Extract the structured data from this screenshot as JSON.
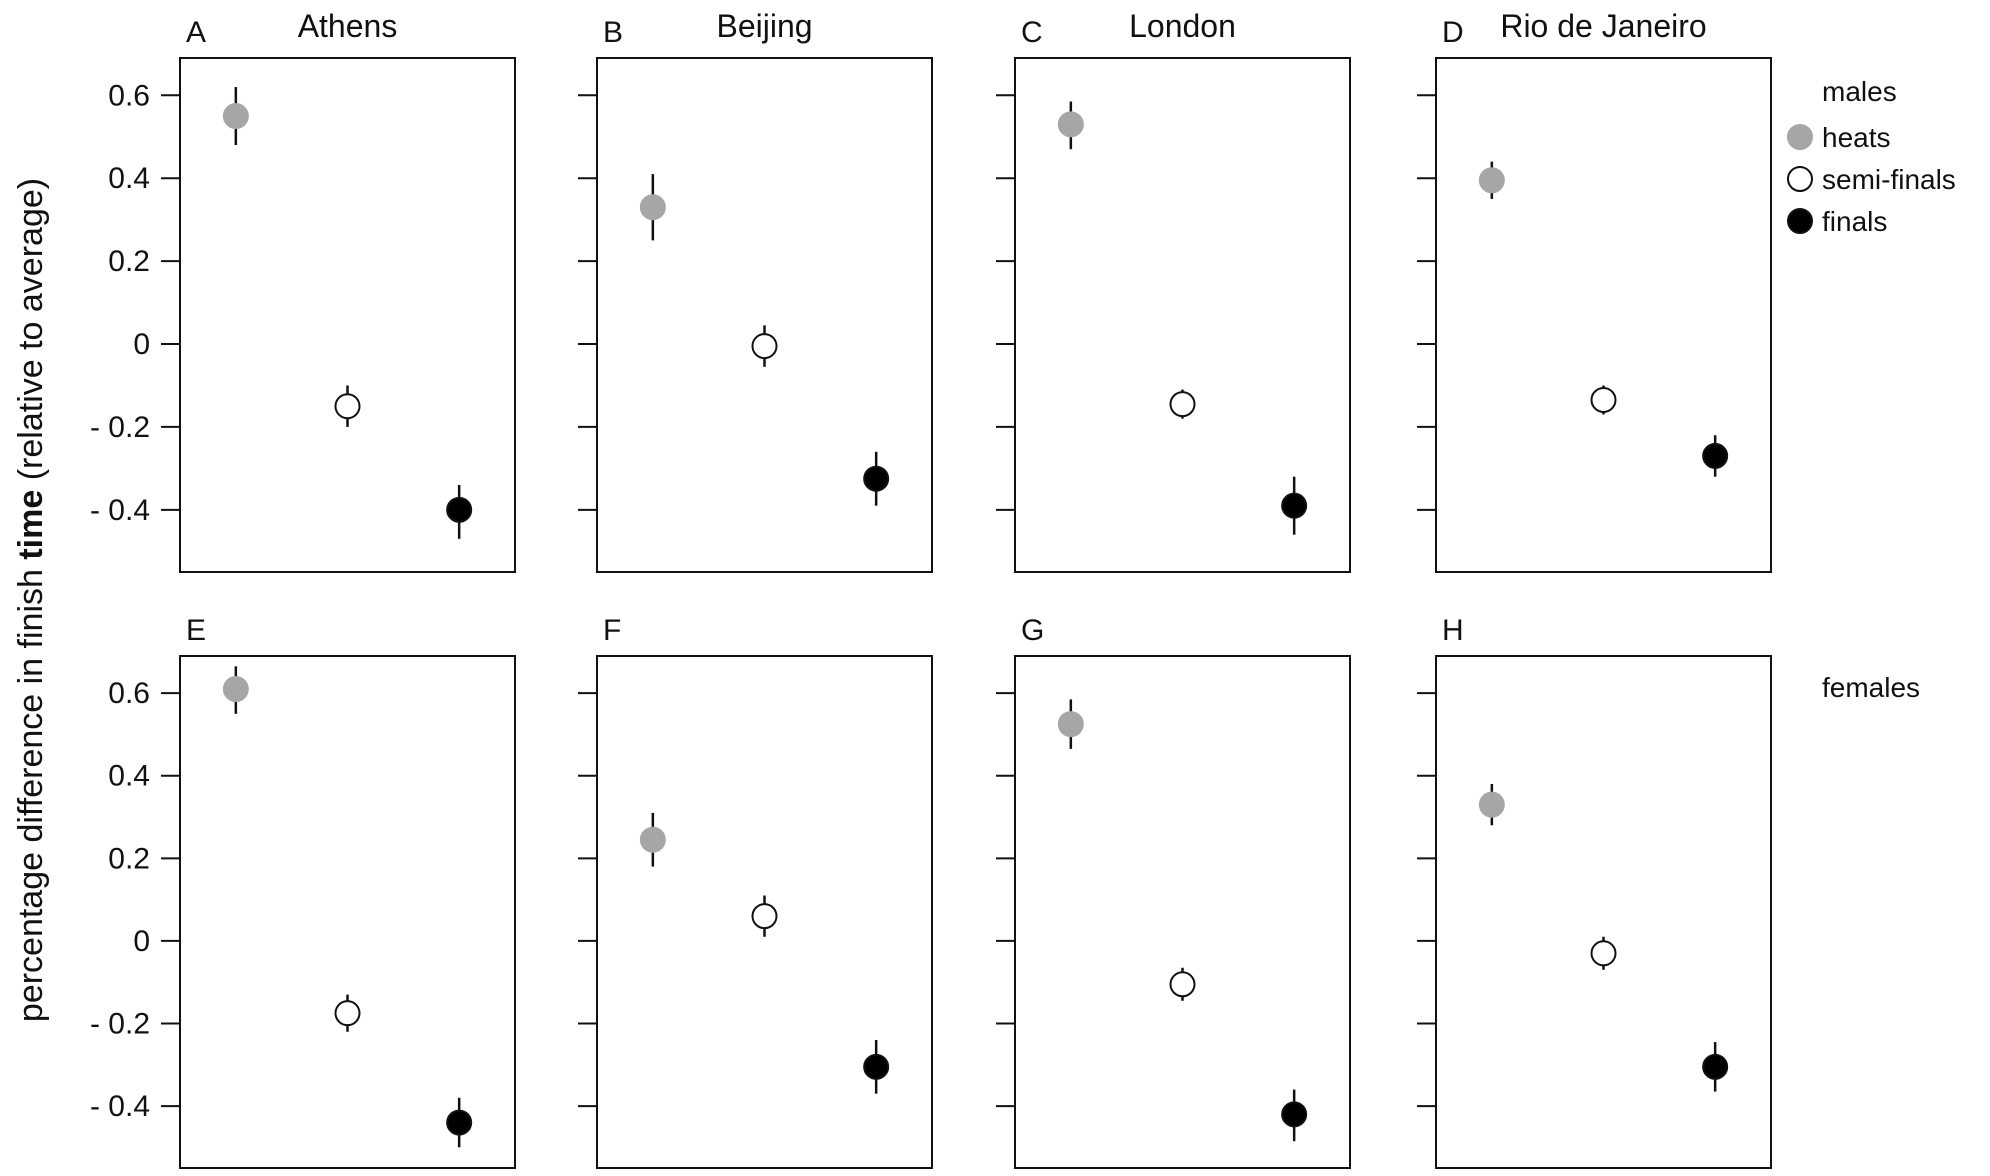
{
  "chart_data": {
    "type": "scatter",
    "ylabel_parts": [
      "percentage difference in finish ",
      "time",
      " (relative to average)"
    ],
    "yticks": [
      0.6,
      0.4,
      0.2,
      0,
      -0.2,
      -0.4
    ],
    "ytick_labels": [
      "0.6",
      "0.4",
      "0.2",
      "0",
      "- 0.2",
      "- 0.4"
    ],
    "ylim": [
      -0.55,
      0.69
    ],
    "xlim": [
      0.5,
      3.5
    ],
    "rounds": [
      "heats",
      "semi-finals",
      "finals"
    ],
    "colors": {
      "heats": "#a6a6a6",
      "semi-finals": "#ffffff",
      "finals": "#000000"
    },
    "legend": {
      "title": "males",
      "items": [
        "heats",
        "semi-finals",
        "finals"
      ],
      "second_title": "females",
      "placement": "right"
    },
    "panels": [
      {
        "letter": "A",
        "city": "Athens",
        "sex": "males",
        "points": [
          {
            "x": 1,
            "y": 0.55,
            "lo": 0.48,
            "hi": 0.62
          },
          {
            "x": 2,
            "y": -0.15,
            "lo": -0.2,
            "hi": -0.1
          },
          {
            "x": 3,
            "y": -0.4,
            "lo": -0.47,
            "hi": -0.34
          }
        ]
      },
      {
        "letter": "B",
        "city": "Beijing",
        "sex": "males",
        "points": [
          {
            "x": 1,
            "y": 0.33,
            "lo": 0.25,
            "hi": 0.41
          },
          {
            "x": 2,
            "y": -0.005,
            "lo": -0.055,
            "hi": 0.045
          },
          {
            "x": 3,
            "y": -0.325,
            "lo": -0.39,
            "hi": -0.26
          }
        ]
      },
      {
        "letter": "C",
        "city": "London",
        "sex": "males",
        "points": [
          {
            "x": 1,
            "y": 0.53,
            "lo": 0.47,
            "hi": 0.585
          },
          {
            "x": 2,
            "y": -0.145,
            "lo": -0.18,
            "hi": -0.11
          },
          {
            "x": 3,
            "y": -0.39,
            "lo": -0.46,
            "hi": -0.32
          }
        ]
      },
      {
        "letter": "D",
        "city": "Rio de Janeiro",
        "sex": "males",
        "points": [
          {
            "x": 1,
            "y": 0.395,
            "lo": 0.35,
            "hi": 0.44
          },
          {
            "x": 2,
            "y": -0.135,
            "lo": -0.17,
            "hi": -0.1
          },
          {
            "x": 3,
            "y": -0.27,
            "lo": -0.32,
            "hi": -0.22
          }
        ]
      },
      {
        "letter": "E",
        "city": "",
        "sex": "females",
        "points": [
          {
            "x": 1,
            "y": 0.61,
            "lo": 0.55,
            "hi": 0.665
          },
          {
            "x": 2,
            "y": -0.175,
            "lo": -0.22,
            "hi": -0.13
          },
          {
            "x": 3,
            "y": -0.44,
            "lo": -0.5,
            "hi": -0.38
          }
        ]
      },
      {
        "letter": "F",
        "city": "",
        "sex": "females",
        "points": [
          {
            "x": 1,
            "y": 0.245,
            "lo": 0.18,
            "hi": 0.31
          },
          {
            "x": 2,
            "y": 0.06,
            "lo": 0.01,
            "hi": 0.11
          },
          {
            "x": 3,
            "y": -0.305,
            "lo": -0.37,
            "hi": -0.24
          }
        ]
      },
      {
        "letter": "G",
        "city": "",
        "sex": "females",
        "points": [
          {
            "x": 1,
            "y": 0.525,
            "lo": 0.465,
            "hi": 0.585
          },
          {
            "x": 2,
            "y": -0.105,
            "lo": -0.145,
            "hi": -0.065
          },
          {
            "x": 3,
            "y": -0.42,
            "lo": -0.485,
            "hi": -0.36
          }
        ]
      },
      {
        "letter": "H",
        "city": "",
        "sex": "females",
        "points": [
          {
            "x": 1,
            "y": 0.33,
            "lo": 0.28,
            "hi": 0.38
          },
          {
            "x": 2,
            "y": -0.03,
            "lo": -0.07,
            "hi": 0.01
          },
          {
            "x": 3,
            "y": -0.305,
            "lo": -0.365,
            "hi": -0.245
          }
        ]
      }
    ]
  }
}
